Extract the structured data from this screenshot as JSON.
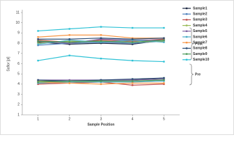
{
  "chart_data": {
    "type": "line",
    "y_label": "Saflor [pl]",
    "x_label": "Sample Position",
    "annotations": [
      "Post",
      "Pre"
    ],
    "x": [
      1,
      2,
      3,
      4,
      5
    ],
    "xlim": [
      0.5,
      5.5
    ],
    "xticks": [
      1,
      2,
      3,
      4,
      5
    ],
    "ylim": [
      1,
      11
    ],
    "yticks": [
      1,
      2,
      3,
      4,
      5,
      6,
      7,
      8,
      9,
      10,
      11
    ],
    "series": [
      {
        "name": "Sample1",
        "color": "#1f2a44",
        "values": [
          8.1,
          7.9,
          8.0,
          7.9,
          8.3
        ],
        "pre": [
          4.3,
          4.3,
          4.4,
          4.4,
          4.6
        ]
      },
      {
        "name": "Sample2",
        "color": "#4f81bd",
        "values": [
          7.8,
          8.0,
          8.1,
          8.0,
          8.2
        ],
        "pre": [
          4.2,
          4.2,
          4.3,
          4.3,
          4.4
        ]
      },
      {
        "name": "Sample3",
        "color": "#c0504d",
        "values": [
          8.3,
          8.1,
          8.3,
          8.2,
          8.4
        ],
        "pre": [
          4.0,
          4.1,
          4.2,
          3.9,
          4.0
        ]
      },
      {
        "name": "Sample4",
        "color": "#9bbb59",
        "values": [
          8.0,
          8.2,
          8.2,
          8.1,
          8.2
        ],
        "pre": [
          4.3,
          4.2,
          4.3,
          4.3,
          4.4
        ]
      },
      {
        "name": "Sample5",
        "color": "#8064a2",
        "values": [
          8.2,
          8.0,
          8.4,
          8.3,
          8.3
        ],
        "pre": [
          4.4,
          4.4,
          4.4,
          4.4,
          4.5
        ]
      },
      {
        "name": "Sample6",
        "color": "#4bacc6",
        "values": [
          7.9,
          8.3,
          8.1,
          8.3,
          8.1
        ],
        "pre": [
          4.1,
          4.2,
          4.2,
          4.2,
          4.3
        ]
      },
      {
        "name": "Sample7",
        "color": "#f79646",
        "values": [
          8.6,
          8.8,
          8.8,
          8.5,
          8.5
        ],
        "pre": [
          4.2,
          4.1,
          4.0,
          4.1,
          4.1
        ]
      },
      {
        "name": "Sample8",
        "color": "#2c4d75",
        "values": [
          8.4,
          8.4,
          8.5,
          8.4,
          8.5
        ],
        "pre": [
          4.4,
          4.3,
          4.4,
          4.5,
          4.6
        ]
      },
      {
        "name": "Sample9",
        "color": "#4e9a5a",
        "values": [
          8.2,
          8.1,
          8.2,
          8.1,
          8.3
        ],
        "pre": [
          4.2,
          4.3,
          4.3,
          4.3,
          4.4
        ]
      },
      {
        "name": "Sample10",
        "color": "#2fc2d6",
        "values": [
          9.2,
          9.4,
          9.6,
          9.5,
          9.5
        ],
        "pre": [
          6.3,
          6.8,
          6.5,
          6.3,
          6.2
        ]
      }
    ]
  }
}
